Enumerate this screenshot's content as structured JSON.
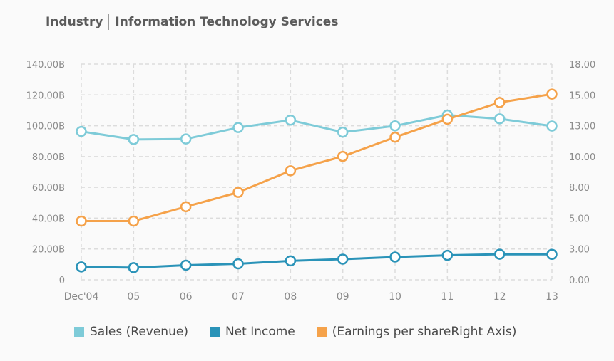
{
  "header": {
    "label": "Industry",
    "value": "Information Technology Services"
  },
  "colors": {
    "sales": "#7ecbd8",
    "net_income": "#2a93b8",
    "eps": "#f5a24a",
    "grid": "#dcdcdc",
    "axis_text": "#8a8a8a"
  },
  "chart_data": {
    "type": "line",
    "categories": [
      "Dec'04",
      "05",
      "06",
      "07",
      "08",
      "09",
      "10",
      "11",
      "12",
      "13"
    ],
    "left_axis": {
      "ticks": [
        0,
        20,
        40,
        60,
        80,
        100,
        120,
        140
      ],
      "tick_labels": [
        "0",
        "20.00B",
        "40.00B",
        "60.00B",
        "80.00B",
        "100.00B",
        "120.00B",
        "140.00B"
      ],
      "ylim": [
        0,
        140
      ]
    },
    "right_axis": {
      "ticks": [
        0,
        3,
        5,
        8,
        10,
        13,
        15,
        18
      ],
      "tick_labels": [
        "0.00",
        "3.00",
        "5.00",
        "8.00",
        "10.00",
        "13.00",
        "15.00",
        "18.00"
      ],
      "ylim": [
        0,
        18
      ]
    },
    "series": [
      {
        "name": "Sales (Revenue)",
        "axis": "left",
        "color": "#7ecbd8",
        "values": [
          96.3,
          91.1,
          91.4,
          98.8,
          103.6,
          95.8,
          99.9,
          106.9,
          104.5,
          99.8
        ]
      },
      {
        "name": "Net Income",
        "axis": "left",
        "color": "#2a93b8",
        "values": [
          8.4,
          7.9,
          9.5,
          10.4,
          12.3,
          13.4,
          14.8,
          15.9,
          16.6,
          16.5
        ]
      },
      {
        "name": "(Earnings per shareRight Axis)",
        "axis": "right",
        "color": "#f5a24a",
        "values": [
          4.9,
          4.9,
          6.1,
          7.3,
          9.1,
          10.3,
          11.9,
          13.4,
          14.8,
          15.5
        ]
      }
    ],
    "grid": true,
    "legend_position": "bottom"
  }
}
